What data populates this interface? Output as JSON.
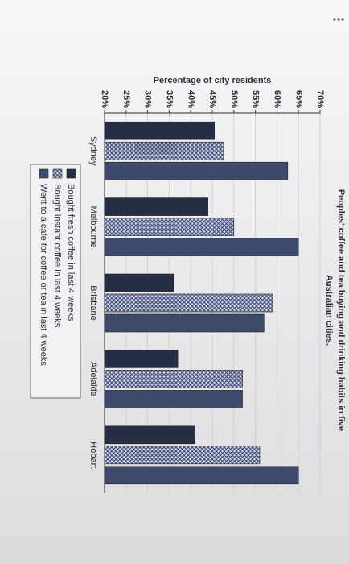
{
  "chart_data": {
    "type": "bar",
    "title": [
      "Peoples' coffee and tea buying and drinking habits in five",
      "Australian cities."
    ],
    "y_label": "Percentage of city residents",
    "categories": [
      "Sydney",
      "Melbourne",
      "Brisbane",
      "Adelaide",
      "Hobart"
    ],
    "series": [
      {
        "name": "Bought fresh coffee in last 4 weeks",
        "color": "#262e45",
        "values": [
          45.5,
          44,
          36,
          37,
          41
        ]
      },
      {
        "name": "Bought instant coffee in last 4 weeks",
        "color": "#8f9bc4",
        "pattern": "crosshatch",
        "values": [
          47.5,
          50,
          59,
          52,
          56
        ]
      },
      {
        "name": "Went to a café for coffee or tea in last 4 weeks",
        "color": "#3e4a6b",
        "values": [
          62.5,
          65,
          57,
          52,
          65
        ]
      }
    ],
    "ylim": [
      20,
      70
    ],
    "yticks": [
      {
        "value": 20,
        "label": "20%"
      },
      {
        "value": 25,
        "label": "25%"
      },
      {
        "value": 30,
        "label": "30%"
      },
      {
        "value": 35,
        "label": "35%"
      },
      {
        "value": 40,
        "label": "40%"
      },
      {
        "value": 45,
        "label": "45%"
      },
      {
        "value": 50,
        "label": "50%"
      },
      {
        "value": 55,
        "label": "55%"
      },
      {
        "value": 60,
        "label": "60%"
      },
      {
        "value": 65,
        "label": "65%"
      },
      {
        "value": 70,
        "label": "70%"
      }
    ],
    "grid": true
  }
}
